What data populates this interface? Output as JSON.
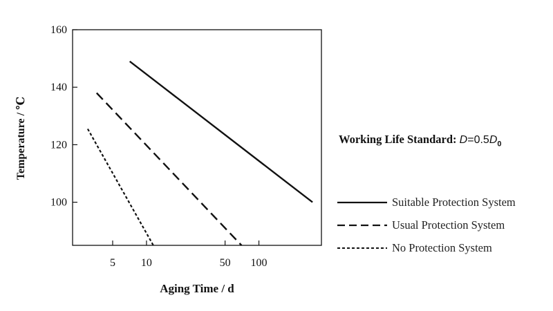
{
  "chart_data": {
    "type": "line",
    "xscale": "log",
    "xlabel": "Aging Time / d",
    "ylabel": "Temperature / ℃",
    "ylim": [
      85,
      160
    ],
    "xlim": [
      2.2,
      360
    ],
    "xticks": [
      5,
      10,
      50,
      100
    ],
    "yticks": [
      100,
      120,
      140,
      160
    ],
    "annotation": {
      "prefix": "Working Life Standard: ",
      "D": "D",
      "eq": "=0.5",
      "D0": "D",
      "sub": "0"
    },
    "series": [
      {
        "name": "Suitable Protection System",
        "style": "solid",
        "x": [
          7.1,
          300
        ],
        "y": [
          149,
          100
        ]
      },
      {
        "name": "Usual Protection System",
        "style": "dashed",
        "x": [
          3.6,
          70
        ],
        "y": [
          138,
          85
        ]
      },
      {
        "name": "No Protection System",
        "style": "dotted",
        "x": [
          3.0,
          11.5
        ],
        "y": [
          125.5,
          85
        ]
      }
    ]
  }
}
